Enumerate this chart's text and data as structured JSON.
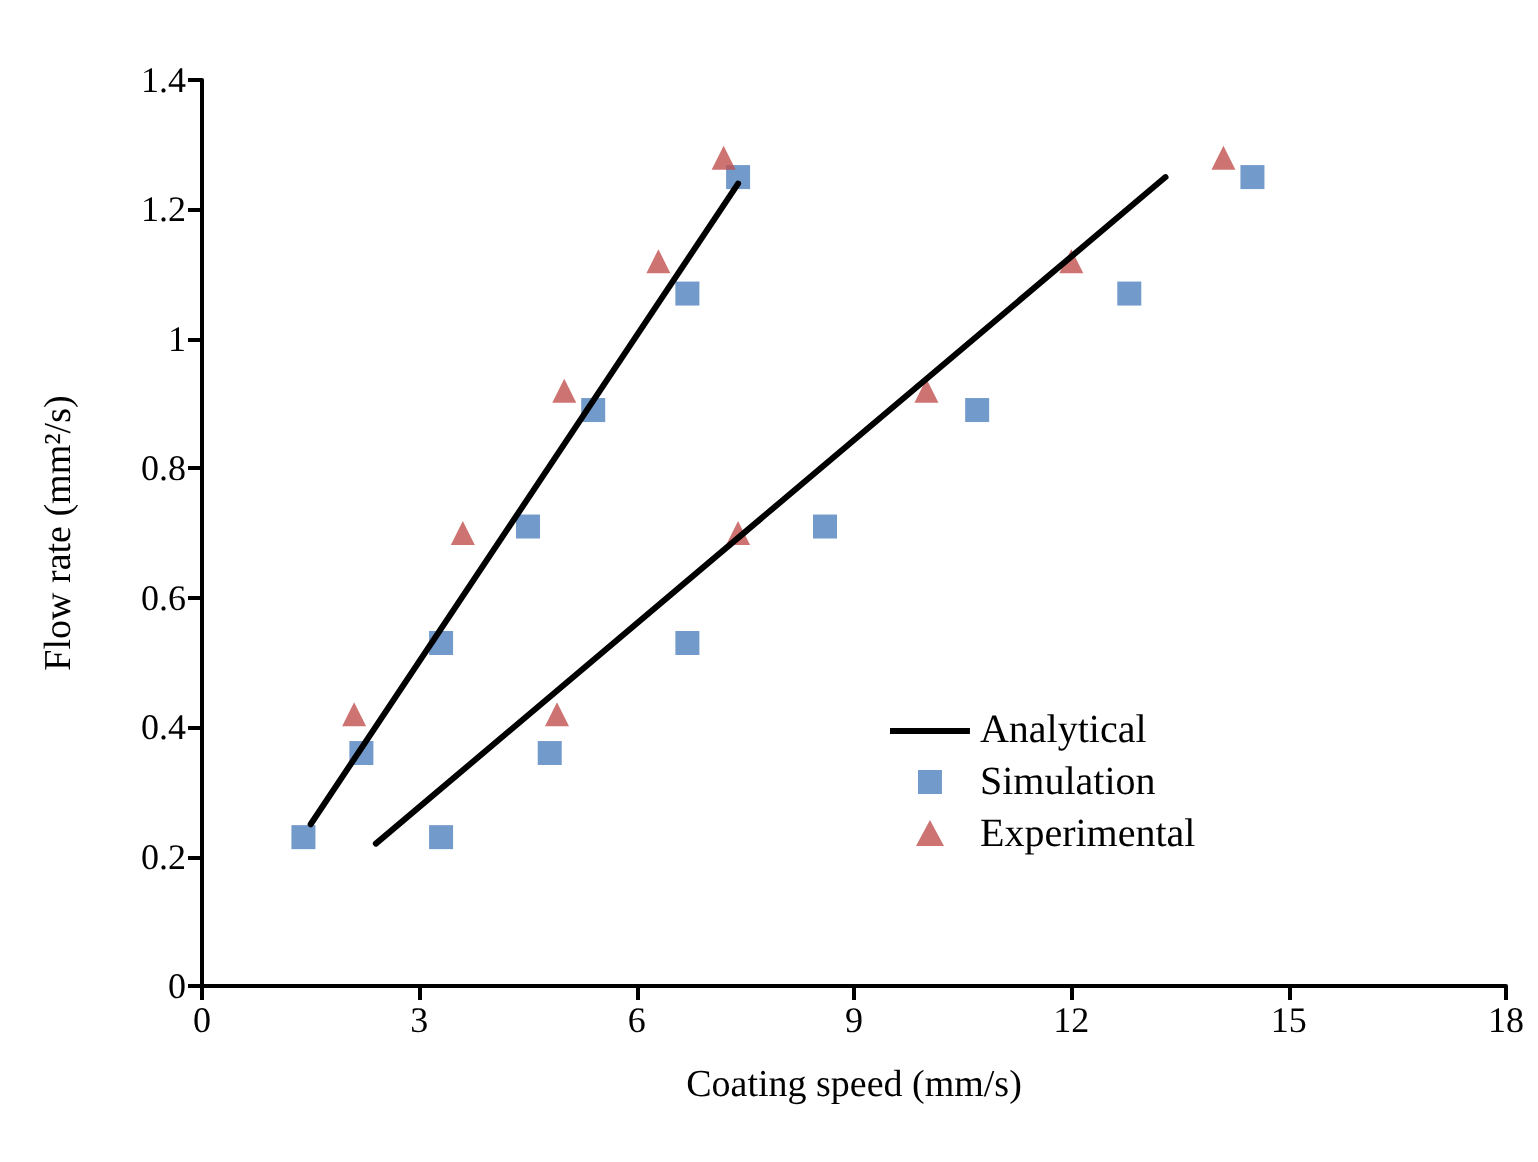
{
  "chart_data": {
    "type": "scatter",
    "xlabel": "Coating speed (mm/s)",
    "ylabel": "Flow rate (mm²/s)",
    "xlim": [
      0,
      18
    ],
    "xticks": [
      0,
      3,
      6,
      9,
      12,
      15,
      18
    ],
    "ylim": [
      0,
      1.4
    ],
    "yticks": [
      0,
      0.2,
      0.4,
      0.6,
      0.8,
      1,
      1.2,
      1.4
    ],
    "grid": false,
    "legend": "bottom right",
    "series": [
      {
        "name": "Analytical",
        "type": "line",
        "color": "#000000",
        "marker": "none",
        "line_style": "solid",
        "x": [
          1.5,
          7.4,
          null,
          2.4,
          13.3
        ],
        "values": [
          0.25,
          1.24,
          null,
          0.22,
          1.25
        ]
      },
      {
        "name": "Simulation",
        "color": "#4f81bd",
        "marker": "square",
        "x": [
          1.4,
          2.2,
          3.3,
          4.5,
          5.4,
          6.7,
          7.4,
          3.3,
          4.8,
          6.7,
          8.6,
          10.7,
          12.8,
          14.5
        ],
        "values": [
          0.23,
          0.36,
          0.53,
          0.71,
          0.89,
          1.07,
          1.25,
          0.23,
          0.36,
          0.53,
          0.71,
          0.89,
          1.07,
          1.25
        ]
      },
      {
        "name": "Experimental",
        "color": "#c0504d",
        "marker": "triangle",
        "x": [
          2.1,
          3.6,
          5.0,
          6.3,
          7.2,
          4.9,
          7.4,
          10.0,
          12.0,
          14.1
        ],
        "values": [
          0.42,
          0.7,
          0.92,
          1.12,
          1.28,
          0.42,
          0.7,
          0.92,
          1.12,
          1.28
        ]
      }
    ]
  }
}
